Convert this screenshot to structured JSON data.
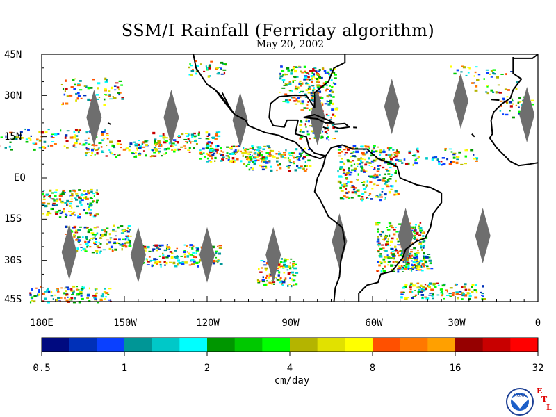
{
  "title": "SSM/I Rainfall (Ferriday algorithm)",
  "date": "May 20, 2002",
  "lat_labels": [
    "45N",
    "30N",
    "15N",
    "EQ",
    "15S",
    "30S",
    "45S"
  ],
  "lon_labels": [
    "180E",
    "150W",
    "120W",
    "90W",
    "60W",
    "30W",
    "0"
  ],
  "colorbar": {
    "colors": [
      "#000a80",
      "#0030b8",
      "#0a40ff",
      "#009696",
      "#00c8c8",
      "#00ffff",
      "#009600",
      "#00c800",
      "#00ff00",
      "#b4b400",
      "#e1e100",
      "#ffff00",
      "#ff5000",
      "#ff7800",
      "#ffa000",
      "#960000",
      "#c80000",
      "#ff0000"
    ],
    "tick_labels": [
      "0.5",
      "1",
      "2",
      "4",
      "8",
      "16",
      "32"
    ],
    "units": "cm/day"
  },
  "colors": {
    "land_outline": "#000000",
    "swath_gap": "#6e6e6e",
    "map_border": "#000000"
  },
  "logo": {
    "noaa_text": "NOAA",
    "etl_letters": [
      "E",
      "T",
      "L"
    ]
  }
}
